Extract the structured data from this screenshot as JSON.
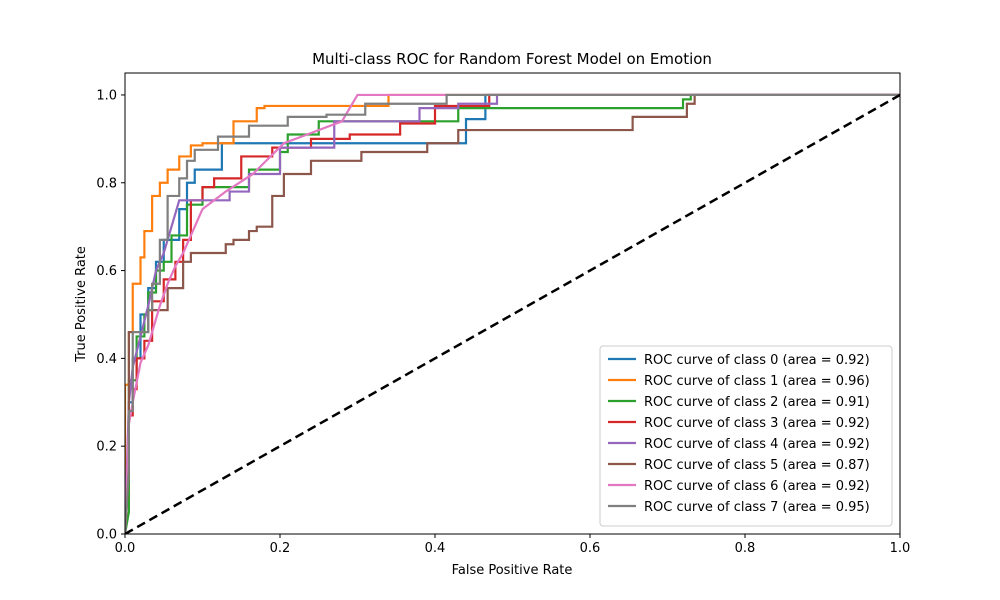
{
  "chart_data": {
    "type": "line",
    "title": "Multi-class ROC for Random Forest Model on Emotion",
    "xlabel": "False Positive Rate",
    "ylabel": "True Positive Rate",
    "xlim": [
      0.0,
      1.0
    ],
    "ylim": [
      0.0,
      1.05
    ],
    "x_ticks": [
      "0.0",
      "0.2",
      "0.4",
      "0.6",
      "0.8",
      "1.0"
    ],
    "y_ticks": [
      "0.0",
      "0.2",
      "0.4",
      "0.6",
      "0.8",
      "1.0"
    ],
    "legend_position": "lower-right",
    "grid": false,
    "diagonal": {
      "x": [
        0,
        1
      ],
      "y": [
        0,
        1
      ],
      "color": "#000000",
      "style": "dashed"
    },
    "series": [
      {
        "name": "ROC curve of class 0 (area = 0.92)",
        "color": "#1f77b4",
        "x": [
          0,
          0.005,
          0.005,
          0.01,
          0.01,
          0.02,
          0.02,
          0.03,
          0.03,
          0.04,
          0.04,
          0.05,
          0.05,
          0.07,
          0.07,
          0.08,
          0.08,
          0.09,
          0.09,
          0.125,
          0.125,
          0.44,
          0.44,
          0.465,
          0.465,
          1.0
        ],
        "y": [
          0,
          0.2,
          0.3,
          0.3,
          0.4,
          0.4,
          0.5,
          0.5,
          0.56,
          0.56,
          0.62,
          0.62,
          0.67,
          0.67,
          0.74,
          0.74,
          0.8,
          0.8,
          0.83,
          0.83,
          0.89,
          0.89,
          0.945,
          0.945,
          1.0,
          1.0
        ]
      },
      {
        "name": "ROC curve of class 1 (area = 0.96)",
        "color": "#ff7f0e",
        "x": [
          0,
          0.0,
          0.005,
          0.005,
          0.01,
          0.01,
          0.02,
          0.02,
          0.025,
          0.025,
          0.035,
          0.035,
          0.045,
          0.045,
          0.055,
          0.055,
          0.07,
          0.07,
          0.085,
          0.085,
          0.1,
          0.1,
          0.14,
          0.14,
          0.17,
          0.17,
          0.18,
          0.18,
          0.34,
          0.34,
          0.465,
          0.465,
          1.0
        ],
        "y": [
          0,
          0.34,
          0.34,
          0.46,
          0.46,
          0.57,
          0.57,
          0.63,
          0.63,
          0.69,
          0.69,
          0.77,
          0.77,
          0.8,
          0.8,
          0.83,
          0.83,
          0.86,
          0.86,
          0.885,
          0.885,
          0.89,
          0.89,
          0.94,
          0.94,
          0.97,
          0.97,
          0.975,
          0.975,
          1.0,
          1.0,
          1.0,
          1.0
        ]
      },
      {
        "name": "ROC curve of class 2 (area = 0.91)",
        "color": "#2ca02c",
        "x": [
          0,
          0.005,
          0.005,
          0.015,
          0.015,
          0.025,
          0.025,
          0.03,
          0.03,
          0.04,
          0.04,
          0.05,
          0.05,
          0.06,
          0.06,
          0.08,
          0.08,
          0.1,
          0.1,
          0.16,
          0.16,
          0.2,
          0.2,
          0.21,
          0.21,
          0.25,
          0.25,
          0.43,
          0.43,
          0.45,
          0.45,
          0.72,
          0.72,
          0.73,
          0.73,
          1.0
        ],
        "y": [
          0,
          0.05,
          0.35,
          0.35,
          0.45,
          0.45,
          0.5,
          0.5,
          0.55,
          0.55,
          0.6,
          0.6,
          0.62,
          0.62,
          0.68,
          0.68,
          0.75,
          0.75,
          0.79,
          0.79,
          0.83,
          0.83,
          0.87,
          0.87,
          0.91,
          0.91,
          0.94,
          0.94,
          0.97,
          0.97,
          0.97,
          0.97,
          0.99,
          0.99,
          1.0,
          1.0
        ]
      },
      {
        "name": "ROC curve of class 3 (area = 0.92)",
        "color": "#d62728",
        "x": [
          0,
          0.005,
          0.005,
          0.01,
          0.01,
          0.015,
          0.015,
          0.025,
          0.025,
          0.035,
          0.035,
          0.05,
          0.05,
          0.065,
          0.065,
          0.075,
          0.075,
          0.085,
          0.085,
          0.1,
          0.1,
          0.115,
          0.115,
          0.15,
          0.15,
          0.19,
          0.19,
          0.24,
          0.24,
          0.29,
          0.29,
          0.355,
          0.355,
          0.4,
          0.4,
          0.47,
          0.47,
          1.0
        ],
        "y": [
          0,
          0.15,
          0.27,
          0.27,
          0.33,
          0.33,
          0.4,
          0.4,
          0.44,
          0.44,
          0.53,
          0.53,
          0.58,
          0.58,
          0.62,
          0.62,
          0.67,
          0.67,
          0.76,
          0.76,
          0.79,
          0.79,
          0.81,
          0.81,
          0.86,
          0.86,
          0.88,
          0.88,
          0.9,
          0.9,
          0.91,
          0.91,
          0.935,
          0.935,
          0.975,
          0.975,
          1.0,
          1.0
        ]
      },
      {
        "name": "ROC curve of class 4 (area = 0.92)",
        "color": "#9467bd",
        "x": [
          0,
          0.005,
          0.005,
          0.01,
          0.01,
          0.02,
          0.02,
          0.03,
          0.03,
          0.04,
          0.04,
          0.05,
          0.05,
          0.06,
          0.06,
          0.07,
          0.07,
          0.11,
          0.11,
          0.135,
          0.135,
          0.16,
          0.16,
          0.2,
          0.2,
          0.27,
          0.27,
          0.38,
          0.38,
          0.43,
          0.43,
          0.48,
          0.48,
          1.0
        ],
        "y": [
          0,
          0.3,
          0.3,
          0.38,
          0.38,
          0.45,
          0.45,
          0.52,
          0.52,
          0.6,
          0.6,
          0.64,
          0.64,
          0.7,
          0.7,
          0.76,
          0.76,
          0.76,
          0.76,
          0.76,
          0.78,
          0.78,
          0.82,
          0.82,
          0.88,
          0.88,
          0.94,
          0.94,
          0.97,
          0.97,
          0.98,
          0.98,
          1.0,
          1.0
        ]
      },
      {
        "name": "ROC curve of class 5 (area = 0.87)",
        "color": "#8c564b",
        "x": [
          0,
          0.005,
          0.005,
          0.03,
          0.03,
          0.055,
          0.055,
          0.075,
          0.075,
          0.085,
          0.085,
          0.13,
          0.13,
          0.14,
          0.14,
          0.16,
          0.16,
          0.17,
          0.17,
          0.19,
          0.19,
          0.205,
          0.205,
          0.24,
          0.24,
          0.305,
          0.305,
          0.39,
          0.39,
          0.43,
          0.43,
          0.44,
          0.44,
          0.655,
          0.655,
          0.725,
          0.725,
          0.735,
          0.735,
          1.0
        ],
        "y": [
          0,
          0.15,
          0.46,
          0.46,
          0.51,
          0.51,
          0.56,
          0.56,
          0.62,
          0.62,
          0.64,
          0.64,
          0.66,
          0.66,
          0.67,
          0.67,
          0.69,
          0.69,
          0.7,
          0.7,
          0.77,
          0.77,
          0.82,
          0.82,
          0.85,
          0.85,
          0.87,
          0.87,
          0.89,
          0.89,
          0.92,
          0.92,
          0.92,
          0.92,
          0.95,
          0.95,
          0.98,
          0.98,
          1.0,
          1.0
        ]
      },
      {
        "name": "ROC curve of class 6 (area = 0.92)",
        "color": "#e377c2",
        "x": [
          0,
          0.005,
          0.005,
          0.01,
          0.01,
          0.02,
          0.02,
          0.03,
          0.03,
          0.045,
          0.045,
          0.055,
          0.055,
          0.065,
          0.065,
          0.075,
          0.075,
          0.09,
          0.09,
          0.1,
          0.1,
          0.13,
          0.13,
          0.165,
          0.165,
          0.205,
          0.205,
          0.235,
          0.235,
          0.28,
          0.28,
          0.29,
          0.29,
          0.3,
          0.3,
          1.0
        ],
        "y": [
          0,
          0.25,
          0.25,
          0.3,
          0.3,
          0.39,
          0.39,
          0.43,
          0.43,
          0.52,
          0.52,
          0.57,
          0.57,
          0.61,
          0.61,
          0.64,
          0.64,
          0.7,
          0.7,
          0.74,
          0.74,
          0.78,
          0.78,
          0.82,
          0.82,
          0.89,
          0.89,
          0.91,
          0.91,
          0.94,
          0.94,
          0.97,
          0.97,
          1.0,
          1.0,
          1.0
        ]
      },
      {
        "name": "ROC curve of class 7 (area = 0.95)",
        "color": "#7f7f7f",
        "x": [
          0,
          0.005,
          0.005,
          0.01,
          0.01,
          0.015,
          0.015,
          0.03,
          0.03,
          0.035,
          0.035,
          0.045,
          0.045,
          0.055,
          0.055,
          0.07,
          0.07,
          0.08,
          0.08,
          0.09,
          0.09,
          0.12,
          0.12,
          0.16,
          0.16,
          0.21,
          0.21,
          0.26,
          0.26,
          0.31,
          0.31,
          0.415,
          0.415,
          1.0
        ],
        "y": [
          0,
          0.15,
          0.28,
          0.28,
          0.46,
          0.46,
          0.46,
          0.46,
          0.51,
          0.51,
          0.57,
          0.57,
          0.67,
          0.67,
          0.77,
          0.77,
          0.81,
          0.81,
          0.85,
          0.85,
          0.875,
          0.875,
          0.905,
          0.905,
          0.93,
          0.93,
          0.95,
          0.95,
          0.955,
          0.955,
          0.98,
          0.98,
          1.0,
          1.0
        ]
      }
    ]
  }
}
